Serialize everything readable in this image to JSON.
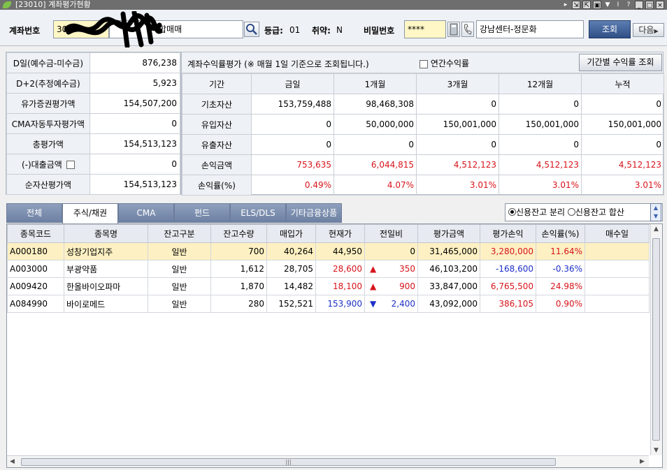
{
  "window": {
    "title": "[23010] 계좌평가현황",
    "buttons": [
      "▸",
      "⇲",
      "⇱",
      "▣",
      "▼",
      "I",
      "?",
      "_",
      "□",
      "×"
    ]
  },
  "topbar": {
    "account_label": "계좌번호",
    "account_value": "30",
    "account_type": "합매매",
    "grade_label": "등급:",
    "grade_value": "01",
    "weak_label": "취약:",
    "weak_value": "N",
    "password_label": "비밀번호",
    "password_value": "****",
    "branch_value": "강남센터-정문화",
    "search_button": "조회",
    "next_button": "다음"
  },
  "summary": {
    "rows": [
      {
        "label": "D일(예수금-미수금)",
        "value": "876,238"
      },
      {
        "label": "D+2(추정예수금)",
        "value": "5,923"
      },
      {
        "label": "유가증권평가액",
        "value": "154,507,200"
      },
      {
        "label": "CMA자동투자평가액",
        "value": "0"
      },
      {
        "label": "총평가액",
        "value": "154,513,123"
      },
      {
        "label": "(-)대출금액",
        "value": "0"
      },
      {
        "label": "순자산평가액",
        "value": "154,513,123"
      }
    ]
  },
  "returns": {
    "heading": "계좌수익률평가 (※ 매월 1일 기준으로 조회됩니다.)",
    "annual_checkbox_label": "연간수익률",
    "period_button": "기간별 수익률 조회",
    "columns": [
      "기간",
      "금일",
      "1개월",
      "3개월",
      "12개월",
      "누적"
    ],
    "rows": [
      {
        "label": "기초자산",
        "values": [
          "153,759,488",
          "98,468,308",
          "0",
          "0",
          "0"
        ],
        "color": ""
      },
      {
        "label": "유입자산",
        "values": [
          "0",
          "50,000,000",
          "150,001,000",
          "150,001,000",
          "150,001,000"
        ],
        "color": ""
      },
      {
        "label": "유출자산",
        "values": [
          "0",
          "0",
          "0",
          "0",
          "0"
        ],
        "color": ""
      },
      {
        "label": "손익금액",
        "values": [
          "753,635",
          "6,044,815",
          "4,512,123",
          "4,512,123",
          "4,512,123"
        ],
        "color": "red"
      },
      {
        "label": "손익률(%)",
        "values": [
          "0.49%",
          "4.07%",
          "3.01%",
          "3.01%",
          "3.01%"
        ],
        "color": "red"
      }
    ]
  },
  "tabs": [
    "전체",
    "주식/채권",
    "CMA",
    "펀드",
    "ELS/DLS",
    "기타금융상품"
  ],
  "active_tab": 1,
  "credit_options": [
    "신용잔고 분리",
    "신용잔고 합산"
  ],
  "holdings": {
    "columns": [
      "종목코드",
      "종목명",
      "잔고구분",
      "잔고수량",
      "매입가",
      "현재가",
      "전일비",
      "평가금액",
      "평가손익",
      "손익률(%)",
      "매수일"
    ],
    "rows": [
      {
        "code": "A000180",
        "name": "성창기업지주",
        "type": "일반",
        "qty": "700",
        "buy": "40,264",
        "cur": "44,950",
        "arrow": "",
        "chg": "0",
        "eval": "31,465,000",
        "pl": "3,280,000",
        "rate": "11.64%",
        "date": "",
        "dir": "flat",
        "plc": "red"
      },
      {
        "code": "A003000",
        "name": "부광약품",
        "type": "일반",
        "qty": "1,612",
        "buy": "28,705",
        "cur": "28,600",
        "arrow": "▲",
        "chg": "350",
        "eval": "46,103,200",
        "pl": "-168,600",
        "rate": "-0.36%",
        "date": "",
        "dir": "up",
        "plc": "blue"
      },
      {
        "code": "A009420",
        "name": "한올바이오파마",
        "type": "일반",
        "qty": "1,870",
        "buy": "14,482",
        "cur": "18,100",
        "arrow": "▲",
        "chg": "900",
        "eval": "33,847,000",
        "pl": "6,765,500",
        "rate": "24.98%",
        "date": "",
        "dir": "up",
        "plc": "red"
      },
      {
        "code": "A084990",
        "name": "바이로메드",
        "type": "일반",
        "qty": "280",
        "buy": "152,521",
        "cur": "153,900",
        "arrow": "▼",
        "chg": "2,400",
        "eval": "43,092,000",
        "pl": "386,105",
        "rate": "0.90%",
        "date": "",
        "dir": "down",
        "plc": "red"
      }
    ]
  },
  "colors": {
    "up": "#d7141b",
    "down": "#1d2fc7",
    "selected_row": "#fdf0c2",
    "tab_active": "#ffffff",
    "tab": "#7b8db0"
  }
}
